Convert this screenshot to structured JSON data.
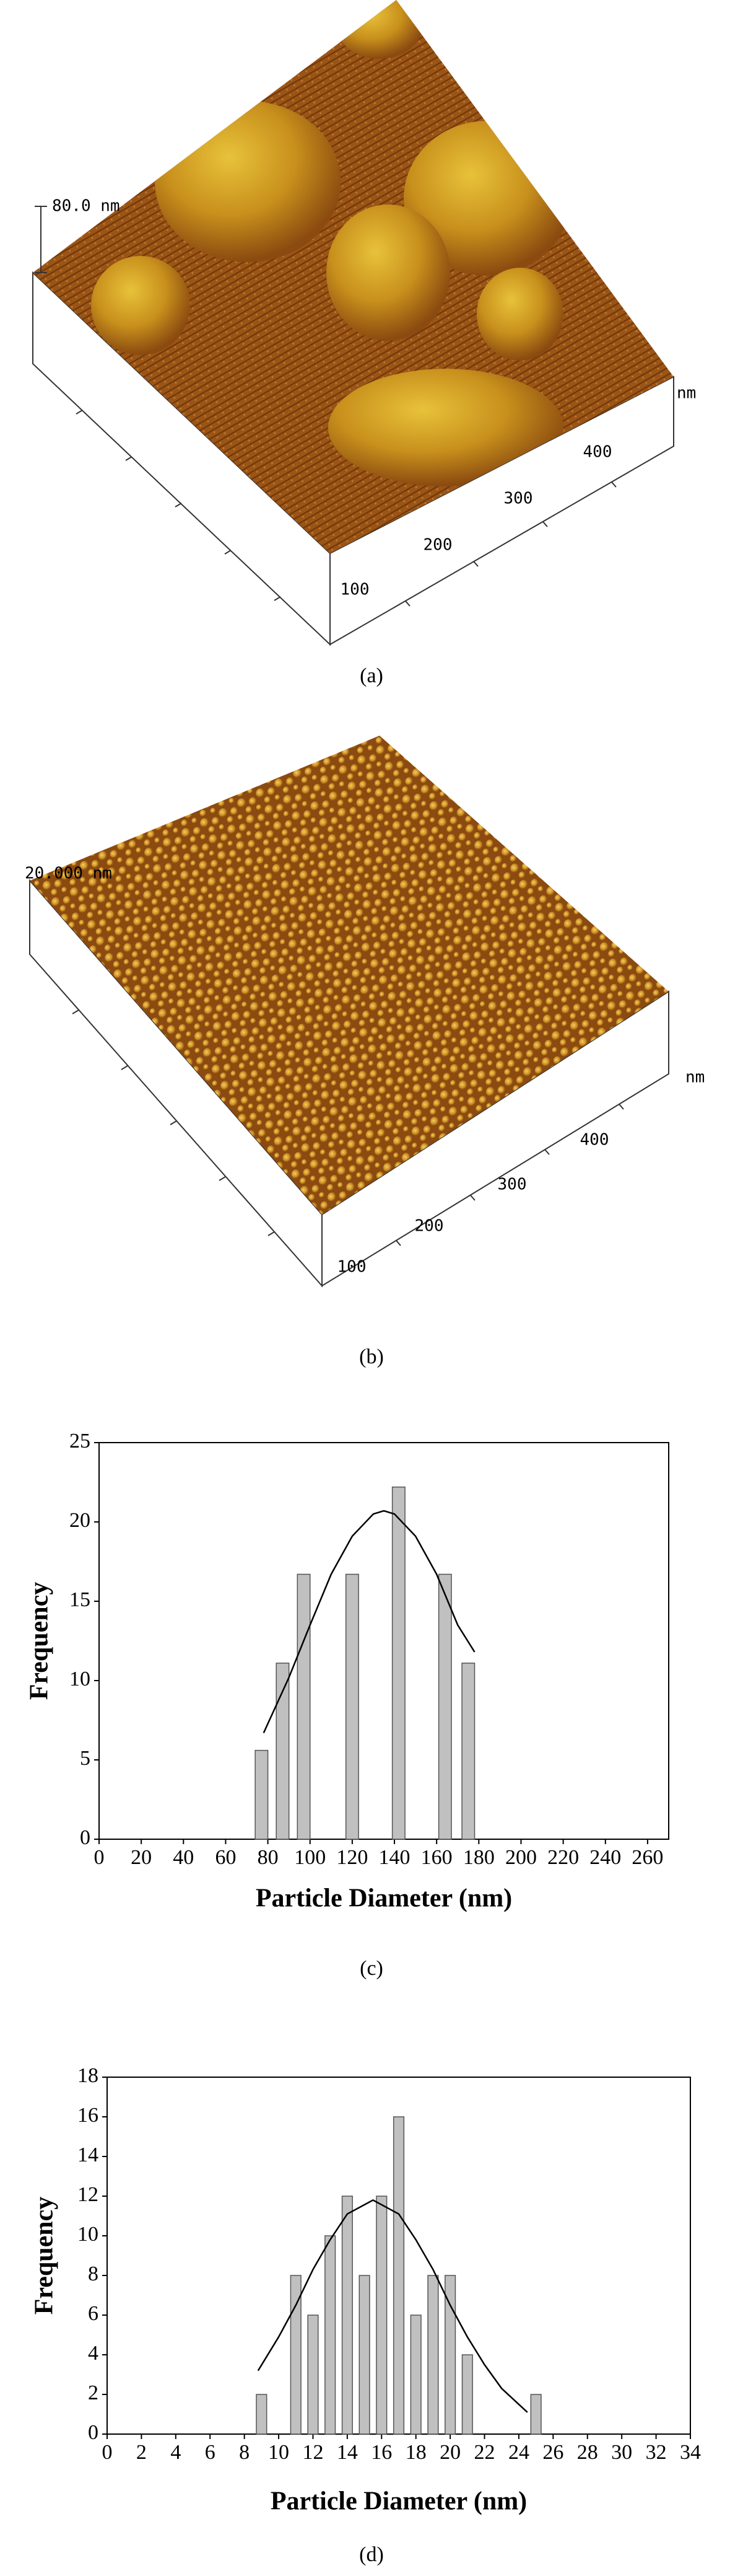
{
  "panels": [
    {
      "scale_label": "80.0 nm",
      "axis_unit": "nm",
      "axis_ticks": [
        "100",
        "200",
        "300",
        "400"
      ],
      "caption": "(a)"
    },
    {
      "scale_label": "20.000 nm",
      "axis_unit": "nm",
      "axis_ticks": [
        "100",
        "200",
        "300",
        "400"
      ],
      "caption": "(b)"
    }
  ],
  "chart_data": [
    {
      "type": "bar",
      "xlabel": "Particle Diameter (nm)",
      "ylabel": "Frequency",
      "caption": "(c)",
      "x": [
        77,
        87,
        97,
        120,
        142,
        164,
        175
      ],
      "values": [
        5.6,
        11.1,
        16.7,
        16.7,
        22.2,
        16.7,
        11.1
      ],
      "color": "#c0c0c0",
      "fit": {
        "x": [
          78,
          90,
          100,
          110,
          120,
          130,
          135,
          140,
          150,
          160,
          170,
          178
        ],
        "values": [
          6.7,
          10.2,
          13.5,
          16.7,
          19.1,
          20.5,
          20.7,
          20.5,
          19.1,
          16.7,
          13.5,
          11.8
        ],
        "color": "#000000"
      },
      "xlim": [
        0,
        270
      ],
      "ylim": [
        0,
        25
      ],
      "xticks": [
        0,
        20,
        40,
        60,
        80,
        100,
        120,
        140,
        160,
        180,
        200,
        220,
        240,
        260
      ],
      "yticks": [
        0,
        5,
        10,
        15,
        20,
        25
      ]
    },
    {
      "type": "bar",
      "xlabel": "Particle Diameter (nm)",
      "ylabel": "Frequency",
      "caption": "(d)",
      "x": [
        9,
        11,
        12,
        13,
        14,
        15,
        16,
        17,
        18,
        19,
        20,
        21,
        25
      ],
      "values": [
        2,
        8,
        6,
        10,
        12,
        8,
        12,
        16,
        6,
        8,
        8,
        4,
        2
      ],
      "color": "#c0c0c0",
      "fit": {
        "x": [
          8.8,
          10,
          11,
          12,
          13,
          14,
          15.5,
          17,
          18,
          19,
          20,
          21,
          22,
          23,
          24.5
        ],
        "values": [
          3.2,
          4.9,
          6.5,
          8.3,
          9.8,
          11.1,
          11.8,
          11.1,
          9.8,
          8.3,
          6.5,
          4.9,
          3.5,
          2.3,
          1.1
        ],
        "color": "#000000"
      },
      "xlim": [
        0,
        34
      ],
      "ylim": [
        0,
        18
      ],
      "xticks": [
        0,
        2,
        4,
        6,
        8,
        10,
        12,
        14,
        16,
        18,
        20,
        22,
        24,
        26,
        28,
        30,
        32,
        34
      ],
      "yticks": [
        0,
        2,
        4,
        6,
        8,
        10,
        12,
        14,
        16,
        18
      ]
    }
  ]
}
